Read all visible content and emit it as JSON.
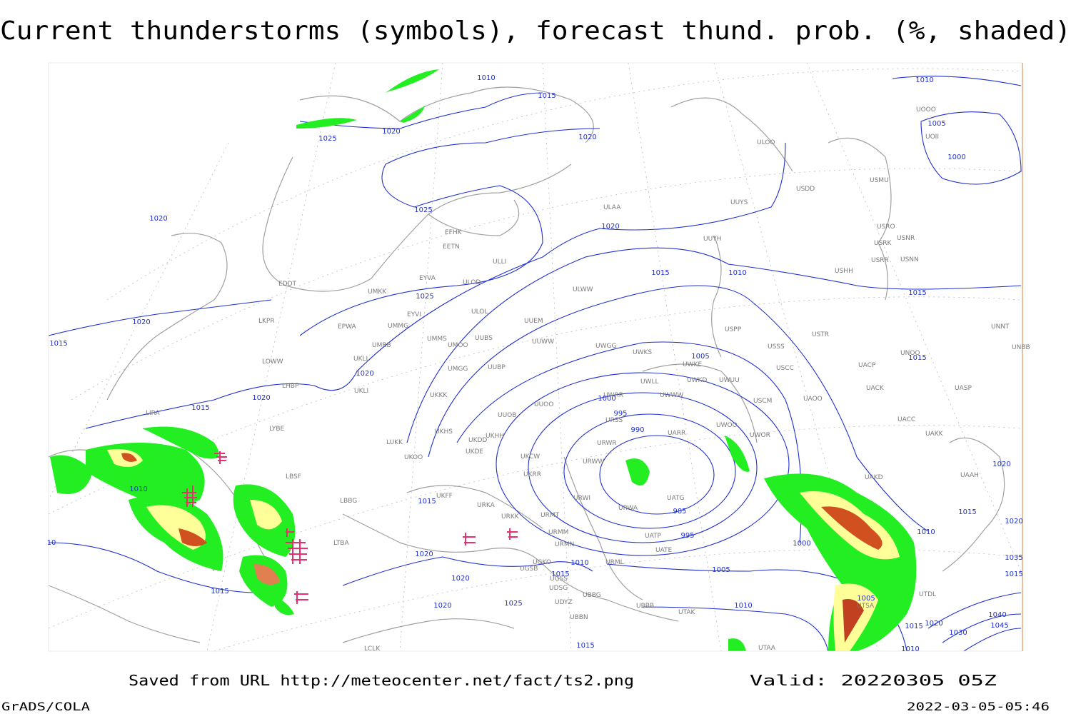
{
  "title": "Current thunderstorms (symbols), forecast thund. prob. (%, shaded)",
  "footer": {
    "saved_from": "Saved from URL http://meteocenter.net/fact/ts2.png",
    "valid": "Valid: 20220305 05Z",
    "software": "GrADS/COLA",
    "timestamp": "2022-03-05-05:46"
  },
  "isobar_labels": [
    1010,
    1015,
    1020,
    1020,
    1025,
    1025,
    1020,
    1020,
    1015,
    1010,
    1025,
    1020,
    1015,
    1005,
    1020,
    1020,
    1015,
    1000,
    995,
    990,
    1010,
    985,
    995,
    1015,
    1000,
    1020,
    1010,
    1005,
    1015,
    1020,
    1015,
    1025,
    1020,
    1010,
    1005,
    1015,
    1010,
    1005,
    1000,
    1015,
    1015,
    1020,
    1015,
    1010,
    1015,
    1010,
    1020,
    1035,
    1015,
    1040,
    1045,
    1030,
    1020,
    10
  ],
  "stations": [
    "EDDT",
    "UMKK",
    "ULOD",
    "EYVA",
    "ULOL",
    "EYVI",
    "EPWA",
    "UMMG",
    "LKPR",
    "UMBB",
    "UMMS",
    "UMOO",
    "UUBS",
    "UUEM",
    "UUWW",
    "UMGG",
    "UUBP",
    "LOWW",
    "LHBP",
    "UKLL",
    "UKLI",
    "UKKK",
    "UUOB",
    "UUOO",
    "LIRA",
    "LYBE",
    "UKHS",
    "UKDD",
    "UKHH",
    "UKDE",
    "LUKK",
    "UKOO",
    "UKCW",
    "UKRR",
    "LBSF",
    "LBBG",
    "UKFF",
    "URKA",
    "URKK",
    "URMT",
    "URMM",
    "URMN",
    "UGSB",
    "UGKO",
    "UGSS",
    "UDSG",
    "UBBG",
    "UBBN",
    "UDYZ",
    "LTBA",
    "UBBB",
    "UTAK",
    "UTAA",
    "LCLK",
    "URML",
    "URWI",
    "URWW",
    "URWA",
    "UATP",
    "UATE",
    "UATG",
    "URSS",
    "URWR",
    "UWWW",
    "UWRR",
    "UWLL",
    "UWKE",
    "UWKD",
    "UWUU",
    "UWGG",
    "UWKS",
    "USPP",
    "USSS",
    "USCC",
    "USCM",
    "UAOO",
    "UWOO",
    "UWOR",
    "UARR",
    "ULWW",
    "ULLI",
    "EFHK",
    "EETN",
    "ULAA",
    "UUYS",
    "UUYH",
    "ULOO",
    "USDD",
    "USMU",
    "USRO",
    "USRK",
    "USNR",
    "USRR",
    "USNN",
    "USHH",
    "USTR",
    "UACP",
    "UACK",
    "UASP",
    "UACC",
    "UAKK",
    "UNOO",
    "UNNT",
    "UNBB",
    "UAKD",
    "UAAH",
    "UTDL",
    "UTSA",
    "UOOO",
    "UOII"
  ]
}
